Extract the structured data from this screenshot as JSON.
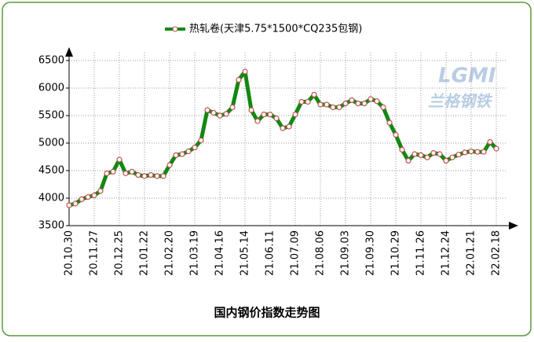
{
  "chart_data": {
    "type": "line",
    "legend_title": null,
    "title": "国内钢价指数走势图",
    "watermark": [
      "LGMI",
      "兰格钢铁"
    ],
    "categories": [
      "20.10.30",
      null,
      null,
      null,
      "20.11.27",
      null,
      null,
      null,
      "20.12.25",
      null,
      null,
      null,
      "21.01.22",
      null,
      null,
      null,
      "21.02.20",
      null,
      null,
      null,
      "21.03.19",
      null,
      null,
      null,
      "21.04.16",
      null,
      null,
      null,
      "21.05.14",
      null,
      null,
      null,
      "21.06.11",
      null,
      null,
      null,
      "21.07.09",
      null,
      null,
      null,
      "21.08.06",
      null,
      null,
      null,
      "21.09.03",
      null,
      null,
      null,
      "21.09.30",
      null,
      null,
      null,
      "21.10.29",
      null,
      null,
      null,
      "21.11.26",
      null,
      null,
      null,
      "21.12.24",
      null,
      null,
      null,
      "22.01.21",
      null,
      null,
      null,
      "22.02.18"
    ],
    "series": [
      {
        "name": "热轧卷(天津5.75*1500*CQ235包钢)",
        "color": "#118811",
        "values": [
          3870,
          3900,
          3980,
          4020,
          4050,
          4130,
          4450,
          4480,
          4700,
          4450,
          4480,
          4420,
          4400,
          4420,
          4400,
          4400,
          4600,
          4780,
          4800,
          4850,
          4920,
          5050,
          5600,
          5550,
          5500,
          5530,
          5650,
          6150,
          6300,
          5600,
          5400,
          5520,
          5520,
          5450,
          5270,
          5300,
          5520,
          5750,
          5750,
          5880,
          5700,
          5700,
          5650,
          5650,
          5720,
          5780,
          5720,
          5720,
          5800,
          5760,
          5650,
          5370,
          5150,
          4880,
          4680,
          4800,
          4780,
          4740,
          4820,
          4800,
          4680,
          4740,
          4790,
          4830,
          4850,
          4840,
          4840,
          5020,
          4900
        ]
      }
    ],
    "ylim": [
      3500,
      6500
    ],
    "yticks": [
      3500,
      4000,
      4500,
      5000,
      5500,
      6000,
      6500
    ],
    "grid": true
  }
}
